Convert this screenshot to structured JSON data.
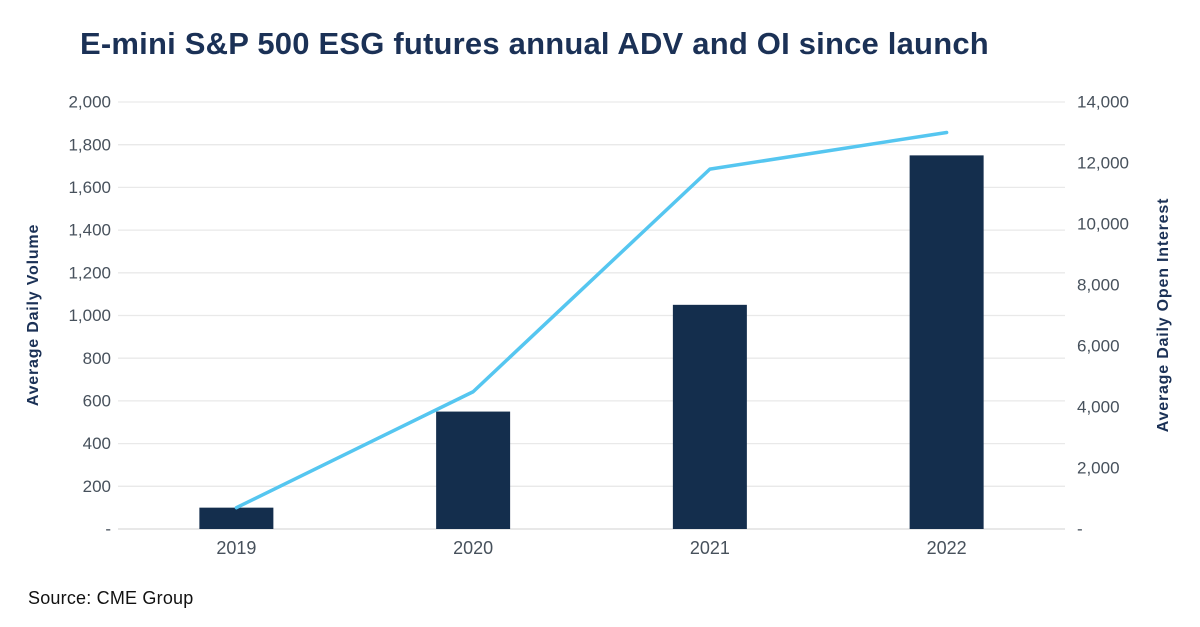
{
  "title": "E-mini S&P 500 ESG futures annual ADV and OI since launch",
  "source": "Source: CME Group",
  "colors": {
    "bar": "#142e4d",
    "line": "#55c6f0",
    "title_navy": "#1b3156",
    "tick_text": "#47515c",
    "gridline": "#e9e9e9",
    "baseline": "#d9d9d9"
  },
  "chart_data": {
    "type": "bar",
    "subtype": "combo-bar-line",
    "title": "E-mini S&P 500 ESG futures annual ADV and OI since launch",
    "categories": [
      "2019",
      "2020",
      "2021",
      "2022"
    ],
    "series": [
      {
        "name": "ADV",
        "type": "bar",
        "axis": "left",
        "values": [
          100,
          550,
          1050,
          1750
        ]
      },
      {
        "name": "OI",
        "type": "line",
        "axis": "right",
        "values": [
          700,
          4500,
          11800,
          13000
        ]
      }
    ],
    "xlabel": "",
    "ylabel_left": "Average Daily Volume",
    "ylabel_right": "Average Daily Open Interest",
    "ylim_left": [
      0,
      2000
    ],
    "ylim_right": [
      0,
      14000
    ],
    "grid": "horizontal",
    "legend": "none",
    "left_ticks": [
      {
        "value": 2000,
        "label": "2,000"
      },
      {
        "value": 1800,
        "label": "1,800"
      },
      {
        "value": 1600,
        "label": "1,600"
      },
      {
        "value": 1400,
        "label": "1,400"
      },
      {
        "value": 1200,
        "label": "1,200"
      },
      {
        "value": 1000,
        "label": "1,000"
      },
      {
        "value": 800,
        "label": "800"
      },
      {
        "value": 600,
        "label": "600"
      },
      {
        "value": 400,
        "label": "400"
      },
      {
        "value": 200,
        "label": "200"
      },
      {
        "value": 0,
        "label": "-"
      }
    ],
    "right_ticks": [
      {
        "value": 14000,
        "label": "14,000"
      },
      {
        "value": 12000,
        "label": "12,000"
      },
      {
        "value": 10000,
        "label": "10,000"
      },
      {
        "value": 8000,
        "label": "8,000"
      },
      {
        "value": 6000,
        "label": "6,000"
      },
      {
        "value": 4000,
        "label": "4,000"
      },
      {
        "value": 2000,
        "label": "2,000"
      },
      {
        "value": 0,
        "label": "-"
      }
    ]
  }
}
